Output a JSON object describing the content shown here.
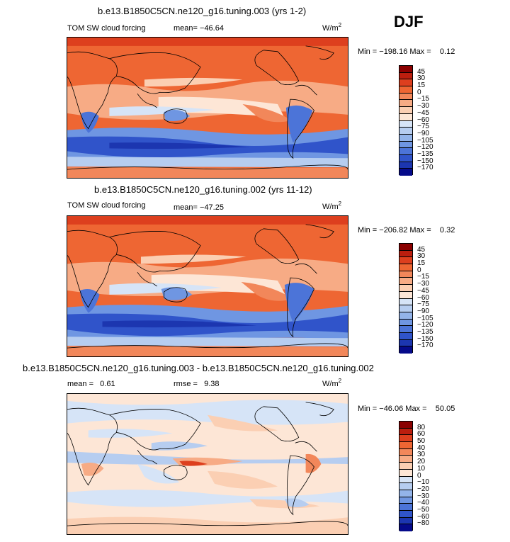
{
  "figure": {
    "season": "DJF"
  },
  "palette": {
    "abs": [
      "#8b0000",
      "#bb1e0e",
      "#dd3f1e",
      "#ee6633",
      "#f2875a",
      "#f7ab85",
      "#fbcfb3",
      "#fde6d6",
      "#d6e4f7",
      "#b6cdf0",
      "#93b4ea",
      "#6f96e2",
      "#4c74d8",
      "#3054ca",
      "#1c36b0",
      "#050a8a"
    ],
    "diff": [
      "#8b0000",
      "#bb1e0e",
      "#dd3f1e",
      "#ee6633",
      "#f2875a",
      "#f7ab85",
      "#fbcfb3",
      "#fde6d6",
      "#d6e4f7",
      "#b6cdf0",
      "#93b4ea",
      "#6f96e2",
      "#4c74d8",
      "#3054ca",
      "#1c36b0",
      "#050a8a"
    ]
  },
  "panels": [
    {
      "title": "b.e13.B1850C5CN.ne120_g16.tuning.003 (yrs 1-2)",
      "variable": "TOM SW cloud forcing",
      "mean_label": "mean=",
      "mean": "−46.64",
      "units": "W/m",
      "units_exp": "2",
      "min_label": "Min = ",
      "min": "−198.16",
      "max_label": "Max =",
      "max": "0.12",
      "levels": [
        "45",
        "30",
        "15",
        "0",
        "−15",
        "−30",
        "−45",
        "−60",
        "−75",
        "−90",
        "−105",
        "−120",
        "−135",
        "−150",
        "−170"
      ]
    },
    {
      "title": "b.e13.B1850C5CN.ne120_g16.tuning.002 (yrs 11-12)",
      "variable": "TOM SW cloud forcing",
      "mean_label": "mean=",
      "mean": "−47.25",
      "units": "W/m",
      "units_exp": "2",
      "min_label": "Min = ",
      "min": "−206.82",
      "max_label": "Max =",
      "max": "0.32",
      "levels": [
        "45",
        "30",
        "15",
        "0",
        "−15",
        "−30",
        "−45",
        "−60",
        "−75",
        "−90",
        "−105",
        "−120",
        "−135",
        "−150",
        "−170"
      ]
    },
    {
      "title": "b.e13.B1850C5CN.ne120_g16.tuning.003 - b.e13.B1850C5CN.ne120_g16.tuning.002",
      "mean_label": "mean =",
      "mean": "0.61",
      "rmse_label": "rmse =",
      "rmse": "9.38",
      "units": "W/m",
      "units_exp": "2",
      "min_label": "Min = ",
      "min": "−46.06",
      "max_label": "Max =",
      "max": "50.05",
      "levels": [
        "80",
        "60",
        "50",
        "40",
        "30",
        "20",
        "10",
        "0",
        "−10",
        "−20",
        "−30",
        "−40",
        "−50",
        "−60",
        "−80"
      ]
    }
  ],
  "chart_data": {
    "type": "heatmap",
    "title": "DJF TOM SW cloud forcing",
    "units": "W/m2",
    "series": [
      {
        "name": "b.e13.B1850C5CN.ne120_g16.tuning.003 (yrs 1-2)",
        "mean": -46.64,
        "min": -198.16,
        "max": 0.12,
        "contour_levels": [
          45,
          30,
          15,
          0,
          -15,
          -30,
          -45,
          -60,
          -75,
          -90,
          -105,
          -120,
          -135,
          -150,
          -170
        ]
      },
      {
        "name": "b.e13.B1850C5CN.ne120_g16.tuning.002 (yrs 11-12)",
        "mean": -47.25,
        "min": -206.82,
        "max": 0.32,
        "contour_levels": [
          45,
          30,
          15,
          0,
          -15,
          -30,
          -45,
          -60,
          -75,
          -90,
          -105,
          -120,
          -135,
          -150,
          -170
        ]
      },
      {
        "name": "difference (tuning.003 - tuning.002)",
        "mean": 0.61,
        "rmse": 9.38,
        "min": -46.06,
        "max": 50.05,
        "contour_levels": [
          80,
          60,
          50,
          40,
          30,
          20,
          10,
          0,
          -10,
          -20,
          -30,
          -40,
          -50,
          -60,
          -80
        ]
      }
    ]
  }
}
